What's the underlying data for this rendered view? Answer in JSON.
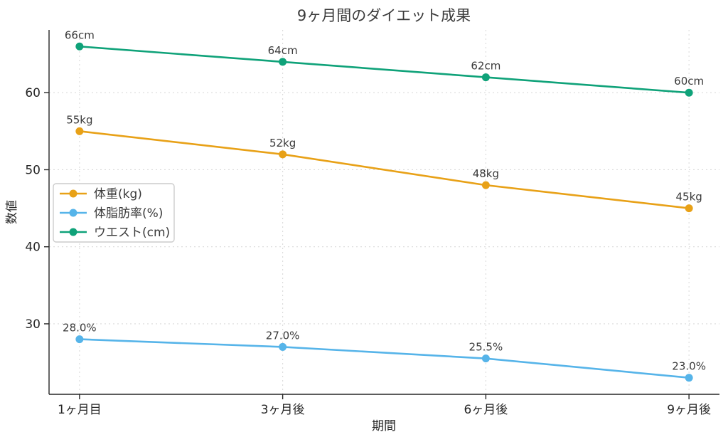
{
  "chart_data": {
    "type": "line",
    "title": "9ヶ月間のダイエット成果",
    "xlabel": "期間",
    "ylabel": "数値",
    "categories": [
      "1ヶ月目",
      "3ヶ月後",
      "6ヶ月後",
      "9ヶ月後"
    ],
    "series": [
      {
        "name": "体重(kg)",
        "color": "#E8A117",
        "values": [
          55,
          52,
          48,
          45
        ],
        "labels": [
          "55kg",
          "52kg",
          "48kg",
          "45kg"
        ]
      },
      {
        "name": "体脂肪率(%)",
        "color": "#56B4E9",
        "values": [
          28.0,
          27.0,
          25.5,
          23.0
        ],
        "labels": [
          "28.0%",
          "27.0%",
          "25.5%",
          "23.0%"
        ]
      },
      {
        "name": "ウエスト(cm)",
        "color": "#0FA279",
        "values": [
          66,
          64,
          62,
          60
        ],
        "labels": [
          "66cm",
          "64cm",
          "62cm",
          "60cm"
        ]
      }
    ],
    "ylim": [
      20.85,
      68.15
    ],
    "yticks": [
      30,
      40,
      50,
      60
    ],
    "grid": true,
    "grid_color": "#DADADA",
    "spine_color": "#262626",
    "legend_position": "left-middle"
  }
}
